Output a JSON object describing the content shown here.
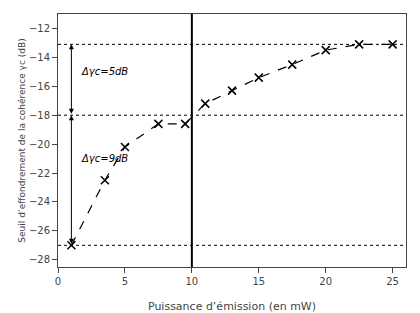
{
  "chart_data": {
    "type": "line",
    "x": [
      1.0,
      3.5,
      5.0,
      7.5,
      9.5,
      11.0,
      13.0,
      15.0,
      17.5,
      20.0,
      22.5,
      25.0
    ],
    "values": [
      -27.0,
      -22.5,
      -20.2,
      -18.6,
      -18.6,
      -17.2,
      -16.3,
      -15.4,
      -14.5,
      -13.5,
      -13.1,
      -13.1
    ],
    "color": "#000000",
    "marker": "x",
    "line_style": "dashed",
    "hlines": [
      -13.1,
      -18.0,
      -27.0
    ],
    "vline": 10.0,
    "arrows": [
      {
        "x": 1.0,
        "y_top": -13.1,
        "y_bottom": -18.0
      },
      {
        "x": 1.0,
        "y_top": -18.0,
        "y_bottom": -27.0
      }
    ],
    "annotations": [
      {
        "text": "Δγc=5dB",
        "x": 1.6,
        "y": -15.0
      },
      {
        "text": "Δγc=9dB",
        "x": 1.6,
        "y": -21.0
      }
    ],
    "xlabel": "Puissance d’émission (en mW)",
    "ylabel": "Seuil d’effondrement de la cohérence γc (dB)",
    "xlim": [
      0,
      26
    ],
    "ylim": [
      -28.5,
      -11.0
    ],
    "xticks": [
      0,
      5,
      10,
      15,
      20,
      25
    ],
    "yticks": [
      -28,
      -26,
      -24,
      -22,
      -20,
      -18,
      -16,
      -14,
      -12
    ],
    "grid": false
  }
}
